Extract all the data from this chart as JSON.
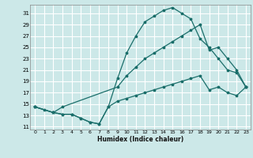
{
  "xlabel": "Humidex (Indice chaleur)",
  "bg_color": "#cce8e8",
  "grid_color": "#ffffff",
  "line_color": "#1a6e6a",
  "xlim": [
    -0.5,
    23.5
  ],
  "ylim": [
    10.5,
    32.5
  ],
  "xticks": [
    0,
    1,
    2,
    3,
    4,
    5,
    6,
    7,
    8,
    9,
    10,
    11,
    12,
    13,
    14,
    15,
    16,
    17,
    18,
    19,
    20,
    21,
    22,
    23
  ],
  "yticks": [
    11,
    13,
    15,
    17,
    19,
    21,
    23,
    25,
    27,
    29,
    31
  ],
  "line1_x": [
    0,
    1,
    2,
    3,
    4,
    5,
    6,
    7,
    8,
    9,
    10,
    11,
    12,
    13,
    14,
    15,
    16,
    17,
    18,
    19,
    20,
    21,
    22,
    23
  ],
  "line1_y": [
    14.5,
    14.0,
    13.5,
    13.2,
    13.2,
    12.5,
    11.8,
    11.5,
    14.5,
    19.5,
    24.0,
    27.0,
    29.5,
    30.5,
    31.5,
    32.0,
    31.0,
    30.0,
    26.5,
    25.0,
    23.0,
    21.0,
    20.5,
    18.0
  ],
  "line2_x": [
    0,
    2,
    3,
    9,
    10,
    11,
    12,
    13,
    14,
    15,
    16,
    17,
    18,
    19,
    20,
    21,
    22,
    23
  ],
  "line2_y": [
    14.5,
    13.5,
    14.5,
    18.0,
    20.0,
    21.5,
    23.0,
    24.0,
    25.0,
    26.0,
    27.0,
    28.0,
    29.0,
    24.5,
    25.0,
    23.0,
    21.0,
    18.0
  ],
  "line3_x": [
    0,
    2,
    3,
    4,
    5,
    6,
    7,
    8,
    9,
    10,
    11,
    12,
    13,
    14,
    15,
    16,
    17,
    18,
    19,
    20,
    21,
    22,
    23
  ],
  "line3_y": [
    14.5,
    13.5,
    13.2,
    13.2,
    12.5,
    11.8,
    11.5,
    14.5,
    15.5,
    16.0,
    16.5,
    17.0,
    17.5,
    18.0,
    18.5,
    19.0,
    19.5,
    20.0,
    17.5,
    18.0,
    17.0,
    16.5,
    18.0
  ]
}
